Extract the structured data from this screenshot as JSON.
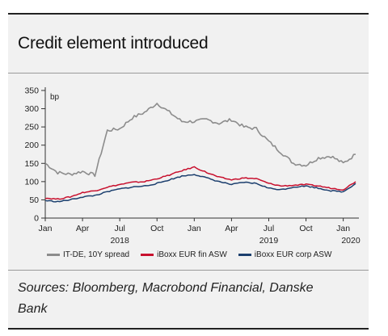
{
  "title": "Credit element introduced",
  "source": "Sources: Bloomberg, Macrobond Financial, Danske Bank",
  "legend": [
    {
      "label": "IT-DE, 10Y spread",
      "color": "#8c8c8c"
    },
    {
      "label": "iBoxx EUR fin ASW",
      "color": "#c8102e"
    },
    {
      "label": "iBoxx EUR corp ASW",
      "color": "#1c3f6e"
    }
  ],
  "chart_data": {
    "type": "line",
    "title": "Credit element introduced",
    "ylabel": "bp",
    "ylim": [
      0,
      350
    ],
    "yticks": [
      0,
      50,
      100,
      150,
      200,
      250,
      300,
      350
    ],
    "x_range_months": [
      "2018-01",
      "2020-02"
    ],
    "month_tick_labels": [
      "Jan",
      "Apr",
      "Jul",
      "Oct",
      "Jan",
      "Apr",
      "Jul",
      "Oct",
      "Jan"
    ],
    "year_labels": [
      "2018",
      "2019",
      "2020"
    ],
    "x": [
      "2018-01",
      "2018-02",
      "2018-03",
      "2018-04",
      "2018-05",
      "2018-06",
      "2018-07",
      "2018-08",
      "2018-09",
      "2018-10",
      "2018-11",
      "2018-12",
      "2019-01",
      "2019-02",
      "2019-03",
      "2019-04",
      "2019-05",
      "2019-06",
      "2019-07",
      "2019-08",
      "2019-09",
      "2019-10",
      "2019-11",
      "2019-12",
      "2020-01",
      "2020-02"
    ],
    "series": [
      {
        "name": "IT-DE, 10Y spread",
        "values": [
          150,
          125,
          120,
          128,
          118,
          240,
          245,
          275,
          290,
          315,
          290,
          265,
          265,
          270,
          260,
          270,
          250,
          245,
          210,
          180,
          150,
          145,
          165,
          170,
          150,
          175
        ]
      },
      {
        "name": "iBoxx EUR fin ASW",
        "values": [
          55,
          52,
          58,
          70,
          75,
          85,
          92,
          98,
          100,
          108,
          118,
          130,
          140,
          125,
          112,
          105,
          110,
          108,
          95,
          88,
          90,
          92,
          88,
          82,
          78,
          100
        ]
      },
      {
        "name": "iBoxx EUR corp ASW",
        "values": [
          48,
          45,
          50,
          58,
          62,
          72,
          80,
          85,
          88,
          95,
          105,
          115,
          120,
          110,
          100,
          92,
          98,
          95,
          82,
          78,
          85,
          88,
          82,
          75,
          72,
          95
        ]
      }
    ],
    "grid": false,
    "legend_position": "bottom"
  }
}
